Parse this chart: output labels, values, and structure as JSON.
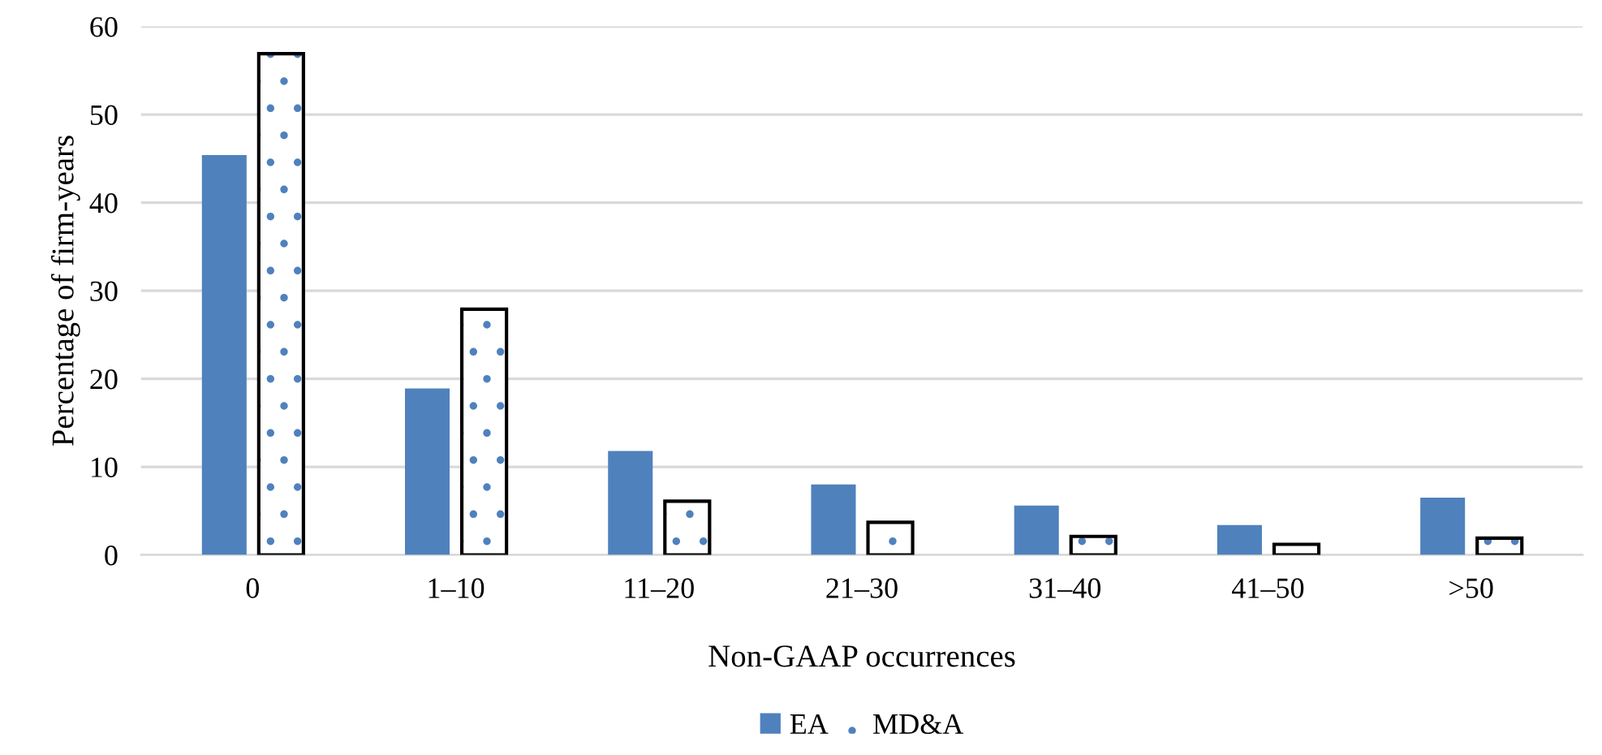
{
  "chart_data": {
    "type": "bar",
    "xlabel": "Non-GAAP occurrences",
    "ylabel": "Percentage of firm-years",
    "categories": [
      "0",
      "1–10",
      "11–20",
      "21–30",
      "31–40",
      "41–50",
      ">50"
    ],
    "series": [
      {
        "name": "EA",
        "color": "#4f81bd",
        "values": [
          45.4,
          18.9,
          11.8,
          8.0,
          5.6,
          3.4,
          6.5
        ]
      },
      {
        "name": "MD&A",
        "color": "#ffffff",
        "values": [
          56.9,
          27.9,
          6.1,
          3.7,
          2.1,
          1.2,
          1.9
        ]
      }
    ],
    "ylim": [
      0,
      60
    ],
    "yticks": [
      0,
      10,
      20,
      30,
      40,
      50,
      60
    ],
    "grid": "y",
    "legend": "bottom"
  }
}
